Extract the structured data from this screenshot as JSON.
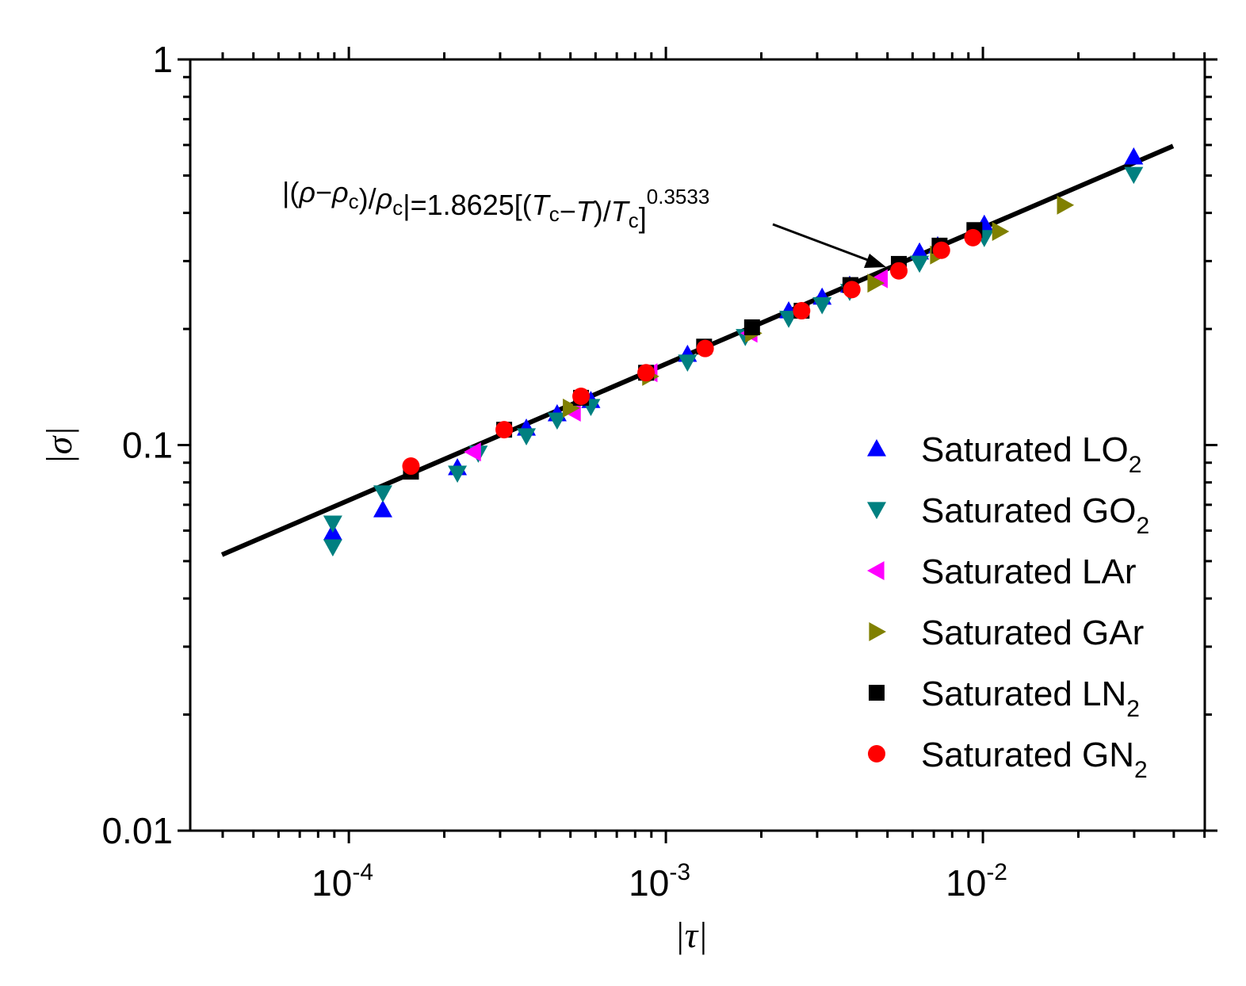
{
  "chart_data": {
    "type": "scatter",
    "xlabel": "|τ|",
    "ylabel": "|σ|",
    "xscale": "log",
    "yscale": "log",
    "xlim": [
      3.16e-05,
      0.0501
    ],
    "ylim": [
      0.01,
      1
    ],
    "x_ticks": [
      {
        "value": 0.0001,
        "base": "10",
        "exp": "-4"
      },
      {
        "value": 0.001,
        "base": "10",
        "exp": "-3"
      },
      {
        "value": 0.01,
        "base": "10",
        "exp": "-2"
      }
    ],
    "y_ticks": [
      {
        "value": 1,
        "label": "1"
      },
      {
        "value": 0.1,
        "label": "0.1"
      },
      {
        "value": 0.01,
        "label": "0.01"
      }
    ],
    "grid": false,
    "legend_placement": "bottom-right",
    "fit_line": {
      "coef": 1.8625,
      "exponent": 0.3533,
      "x_range": [
        3.98e-05,
        0.0398
      ],
      "color": "#000000"
    },
    "annotation": [
      {
        "t": "|(",
        "s": "n"
      },
      {
        "t": "ρ",
        "s": "i"
      },
      {
        "t": "−",
        "s": "n"
      },
      {
        "t": "ρ",
        "s": "i"
      },
      {
        "t": "c",
        "s": "sub"
      },
      {
        "t": ")/",
        "s": "n"
      },
      {
        "t": "ρ",
        "s": "i"
      },
      {
        "t": "c",
        "s": "sub"
      },
      {
        "t": "|=1.8625[(",
        "s": "n"
      },
      {
        "t": "T",
        "s": "i"
      },
      {
        "t": "c",
        "s": "sub"
      },
      {
        "t": "−",
        "s": "n"
      },
      {
        "t": "T",
        "s": "i"
      },
      {
        "t": ")/",
        "s": "n"
      },
      {
        "t": "T",
        "s": "i"
      },
      {
        "t": "c",
        "s": "sub"
      },
      {
        "t": "]",
        "s": "n"
      },
      {
        "t": "0.3533",
        "s": "sup"
      }
    ],
    "series": [
      {
        "name": "Saturated LO",
        "sub": "2",
        "marker": "triangle-up",
        "color": "#0000ff",
        "points": [
          [
            8.9e-05,
            0.0593
          ],
          [
            0.000128,
            0.068
          ],
          [
            0.00022,
            0.0874
          ],
          [
            0.000363,
            0.1107
          ],
          [
            0.000454,
            0.1206
          ],
          [
            0.00058,
            0.1306
          ],
          [
            0.00117,
            0.172
          ],
          [
            0.00244,
            0.223
          ],
          [
            0.00311,
            0.242
          ],
          [
            0.0038,
            0.26
          ],
          [
            0.00631,
            0.317
          ],
          [
            0.0072,
            0.329
          ],
          [
            0.0101,
            0.374
          ],
          [
            0.0299,
            0.559
          ]
        ]
      },
      {
        "name": "Saturated GO",
        "sub": "2",
        "marker": "triangle-down",
        "color": "#008080",
        "points": [
          [
            8.9e-05,
            0.0627
          ],
          [
            8.9e-05,
            0.0544
          ],
          [
            0.000128,
            0.0751
          ],
          [
            0.00022,
            0.0845
          ],
          [
            0.000256,
            0.0952
          ],
          [
            0.000363,
            0.1056
          ],
          [
            0.000454,
            0.116
          ],
          [
            0.00058,
            0.1258
          ],
          [
            0.00117,
            0.164
          ],
          [
            0.00178,
            0.191
          ],
          [
            0.00244,
            0.213
          ],
          [
            0.00311,
            0.231
          ],
          [
            0.0038,
            0.25
          ],
          [
            0.00631,
            0.296
          ],
          [
            0.0101,
            0.345
          ],
          [
            0.0299,
            0.503
          ]
        ]
      },
      {
        "name": "Saturated LAr",
        "sub": "",
        "marker": "triangle-left",
        "color": "#ff00ff",
        "points": [
          [
            0.000247,
            0.096
          ],
          [
            0.00051,
            0.1217
          ],
          [
            0.00089,
            0.154
          ],
          [
            0.00184,
            0.195
          ],
          [
            0.00474,
            0.27
          ]
        ]
      },
      {
        "name": "Saturated GAr",
        "sub": "",
        "marker": "triangle-right",
        "color": "#808000",
        "points": [
          [
            0.0005,
            0.1247
          ],
          [
            0.00089,
            0.1507
          ],
          [
            0.00188,
            0.195
          ],
          [
            0.00457,
            0.263
          ],
          [
            0.0072,
            0.311
          ],
          [
            0.0113,
            0.358
          ],
          [
            0.0181,
            0.419
          ]
        ]
      },
      {
        "name": "Saturated LN",
        "sub": "2",
        "marker": "square",
        "color": "#000000",
        "points": [
          [
            0.000157,
            0.0853
          ],
          [
            0.000309,
            0.1096
          ],
          [
            0.00054,
            0.1326
          ],
          [
            0.000866,
            0.154
          ],
          [
            0.00132,
            0.18
          ],
          [
            0.00187,
            0.202
          ],
          [
            0.00268,
            0.223
          ],
          [
            0.00382,
            0.26
          ],
          [
            0.00543,
            0.295
          ],
          [
            0.0073,
            0.329
          ],
          [
            0.0094,
            0.361
          ]
        ]
      },
      {
        "name": "Saturated GN",
        "sub": "2",
        "marker": "circle",
        "color": "#ff0000",
        "points": [
          [
            0.000157,
            0.0882
          ],
          [
            0.000309,
            0.1096
          ],
          [
            0.00054,
            0.1338
          ],
          [
            0.000866,
            0.154
          ],
          [
            0.00133,
            0.178
          ],
          [
            0.00268,
            0.223
          ],
          [
            0.00386,
            0.253
          ],
          [
            0.00543,
            0.283
          ],
          [
            0.0074,
            0.32
          ],
          [
            0.0093,
            0.345
          ]
        ]
      }
    ]
  }
}
